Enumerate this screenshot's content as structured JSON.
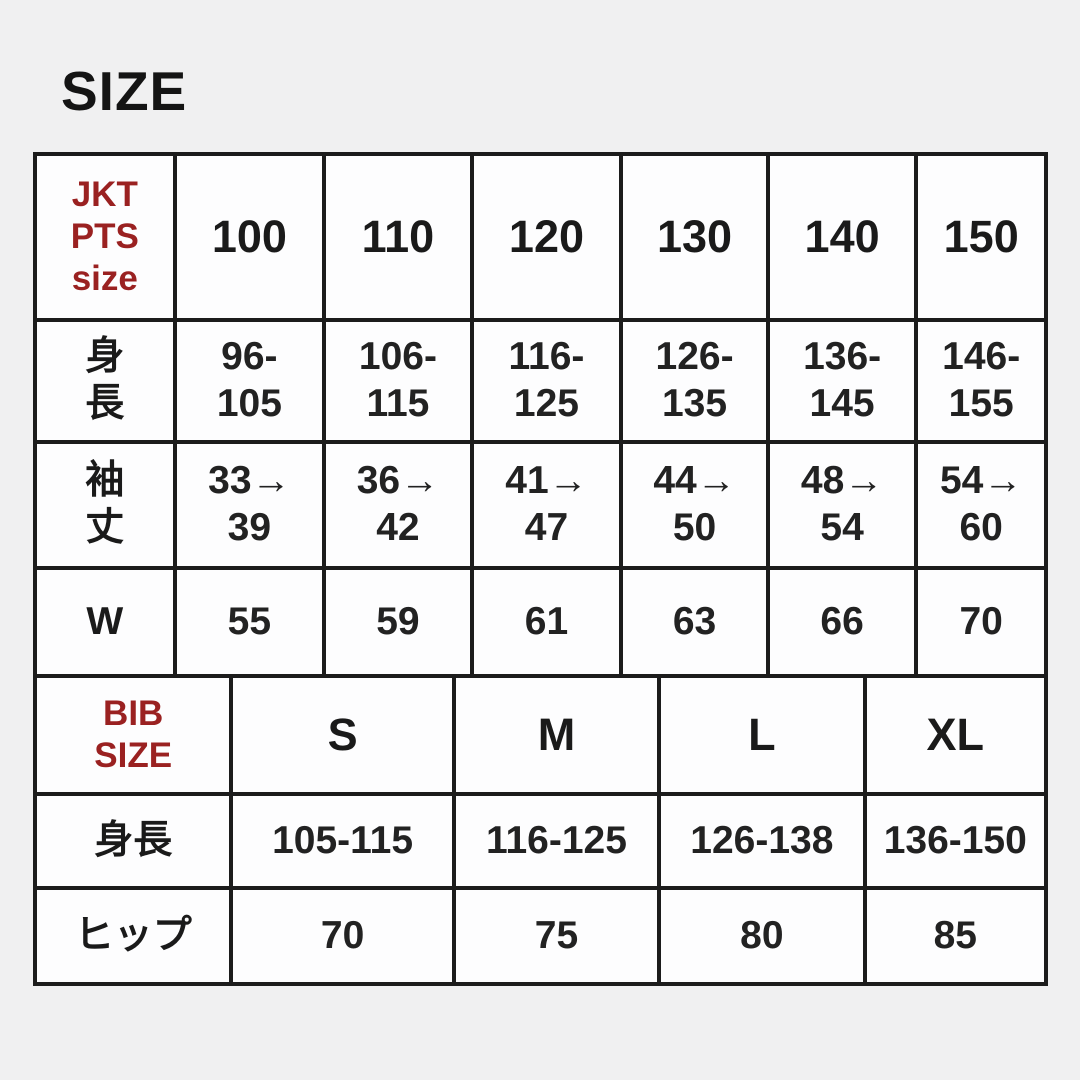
{
  "title": "SIZE",
  "colors": {
    "background": "#f0f0f1",
    "cell_fill": "#fdfdfe",
    "grid_border": "#1c1c1c",
    "accent_red": "#9a2121",
    "text": "#1a1a1a"
  },
  "jkt_table": {
    "corner_label": "JKT\nPTS\nsize",
    "size_headers": [
      "100",
      "110",
      "120",
      "130",
      "140",
      "150"
    ],
    "rows": [
      {
        "label": "身\n長",
        "values": [
          "96-\n105",
          "106-\n115",
          "116-\n125",
          "126-\n135",
          "136-\n145",
          "146-\n155"
        ]
      },
      {
        "label": "袖\n丈",
        "values": [
          "33→\n39",
          "36→\n42",
          "41→\n47",
          "44→\n50",
          "48→\n54",
          "54→\n60"
        ]
      },
      {
        "label": "W",
        "values": [
          "55",
          "59",
          "61",
          "63",
          "66",
          "70"
        ]
      }
    ]
  },
  "bib_table": {
    "corner_label": "BIB\nSIZE",
    "size_headers": [
      "S",
      "M",
      "L",
      "XL"
    ],
    "rows": [
      {
        "label": "身長",
        "values": [
          "105-115",
          "116-125",
          "126-138",
          "136-150"
        ]
      },
      {
        "label": "ヒップ",
        "values": [
          "70",
          "75",
          "80",
          "85"
        ]
      }
    ]
  }
}
